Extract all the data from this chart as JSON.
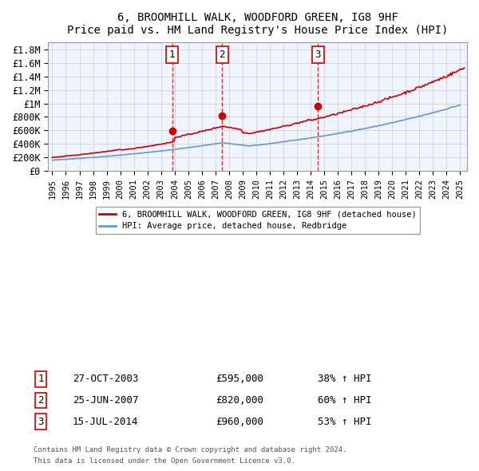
{
  "title": "6, BROOMHILL WALK, WOODFORD GREEN, IG8 9HF",
  "subtitle": "Price paid vs. HM Land Registry's House Price Index (HPI)",
  "ylabel_ticks": [
    "£0",
    "£200K",
    "£400K",
    "£600K",
    "£800K",
    "£1M",
    "£1.2M",
    "£1.4M",
    "£1.6M",
    "£1.8M"
  ],
  "ylim": [
    0,
    1900000
  ],
  "xlim_start": 1995,
  "xlim_end": 2025.5,
  "sale_dates": [
    2003.82,
    2007.48,
    2014.54
  ],
  "sale_prices": [
    595000,
    820000,
    960000
  ],
  "sale_labels": [
    "1",
    "2",
    "3"
  ],
  "sale_info": [
    {
      "label": "1",
      "date": "27-OCT-2003",
      "price": "£595,000",
      "pct": "38% ↑ HPI"
    },
    {
      "label": "2",
      "date": "25-JUN-2007",
      "price": "£820,000",
      "pct": "60% ↑ HPI"
    },
    {
      "label": "3",
      "date": "15-JUL-2014",
      "price": "£960,000",
      "pct": "53% ↑ HPI"
    }
  ],
  "legend_line1": "6, BROOMHILL WALK, WOODFORD GREEN, IG8 9HF (detached house)",
  "legend_line2": "HPI: Average price, detached house, Redbridge",
  "footer1": "Contains HM Land Registry data © Crown copyright and database right 2024.",
  "footer2": "This data is licensed under the Open Government Licence v3.0.",
  "bg_color": "#f0f4ff",
  "plot_bg_color": "#ffffff",
  "red_color": "#cc0000",
  "blue_color": "#6699cc",
  "vline_color": "#cc0000",
  "grid_color": "#cccccc"
}
